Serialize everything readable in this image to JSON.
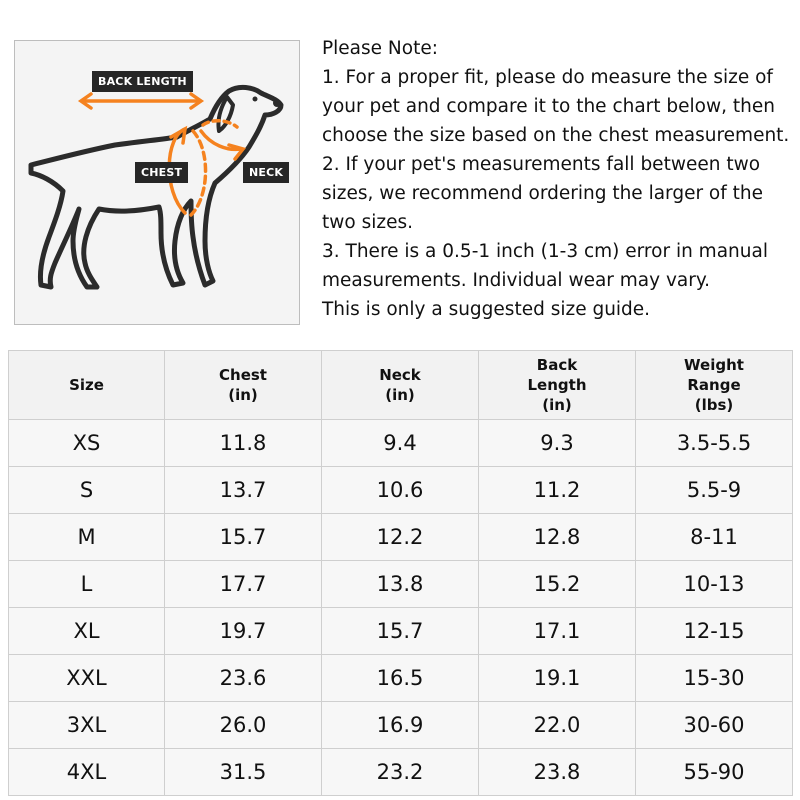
{
  "figure": {
    "labels": {
      "back_length": "BACK LENGTH",
      "chest": "CHEST",
      "neck": "NECK"
    },
    "colors": {
      "accent": "#f5821f",
      "label_bg": "#262626",
      "outline": "#2b2b2b"
    }
  },
  "note": {
    "heading": "Please Note:",
    "lines": [
      "1. For a proper fit, please do measure the size of your pet and compare it to the chart below, then choose the size based on the chest measurement.",
      "2. If your pet's measurements fall between two sizes, we recommend ordering the larger of the two sizes.",
      "3. There is a 0.5-1 inch (1-3 cm) error in manual measurements. Individual wear may vary.",
      "This is only a suggested size guide."
    ]
  },
  "table": {
    "headers": [
      [
        "Size"
      ],
      [
        "Chest",
        "(in)"
      ],
      [
        "Neck",
        "(in)"
      ],
      [
        "Back",
        "Length",
        "(in)"
      ],
      [
        "Weight",
        "Range",
        "(lbs)"
      ]
    ],
    "rows": [
      [
        "XS",
        "11.8",
        "9.4",
        "9.3",
        "3.5-5.5"
      ],
      [
        "S",
        "13.7",
        "10.6",
        "11.2",
        "5.5-9"
      ],
      [
        "M",
        "15.7",
        "12.2",
        "12.8",
        "8-11"
      ],
      [
        "L",
        "17.7",
        "13.8",
        "15.2",
        "10-13"
      ],
      [
        "XL",
        "19.7",
        "15.7",
        "17.1",
        "12-15"
      ],
      [
        "XXL",
        "23.6",
        "16.5",
        "19.1",
        "15-30"
      ],
      [
        "3XL",
        "26.0",
        "16.9",
        "22.0",
        "30-60"
      ],
      [
        "4XL",
        "31.5",
        "23.2",
        "23.8",
        "55-90"
      ]
    ]
  }
}
